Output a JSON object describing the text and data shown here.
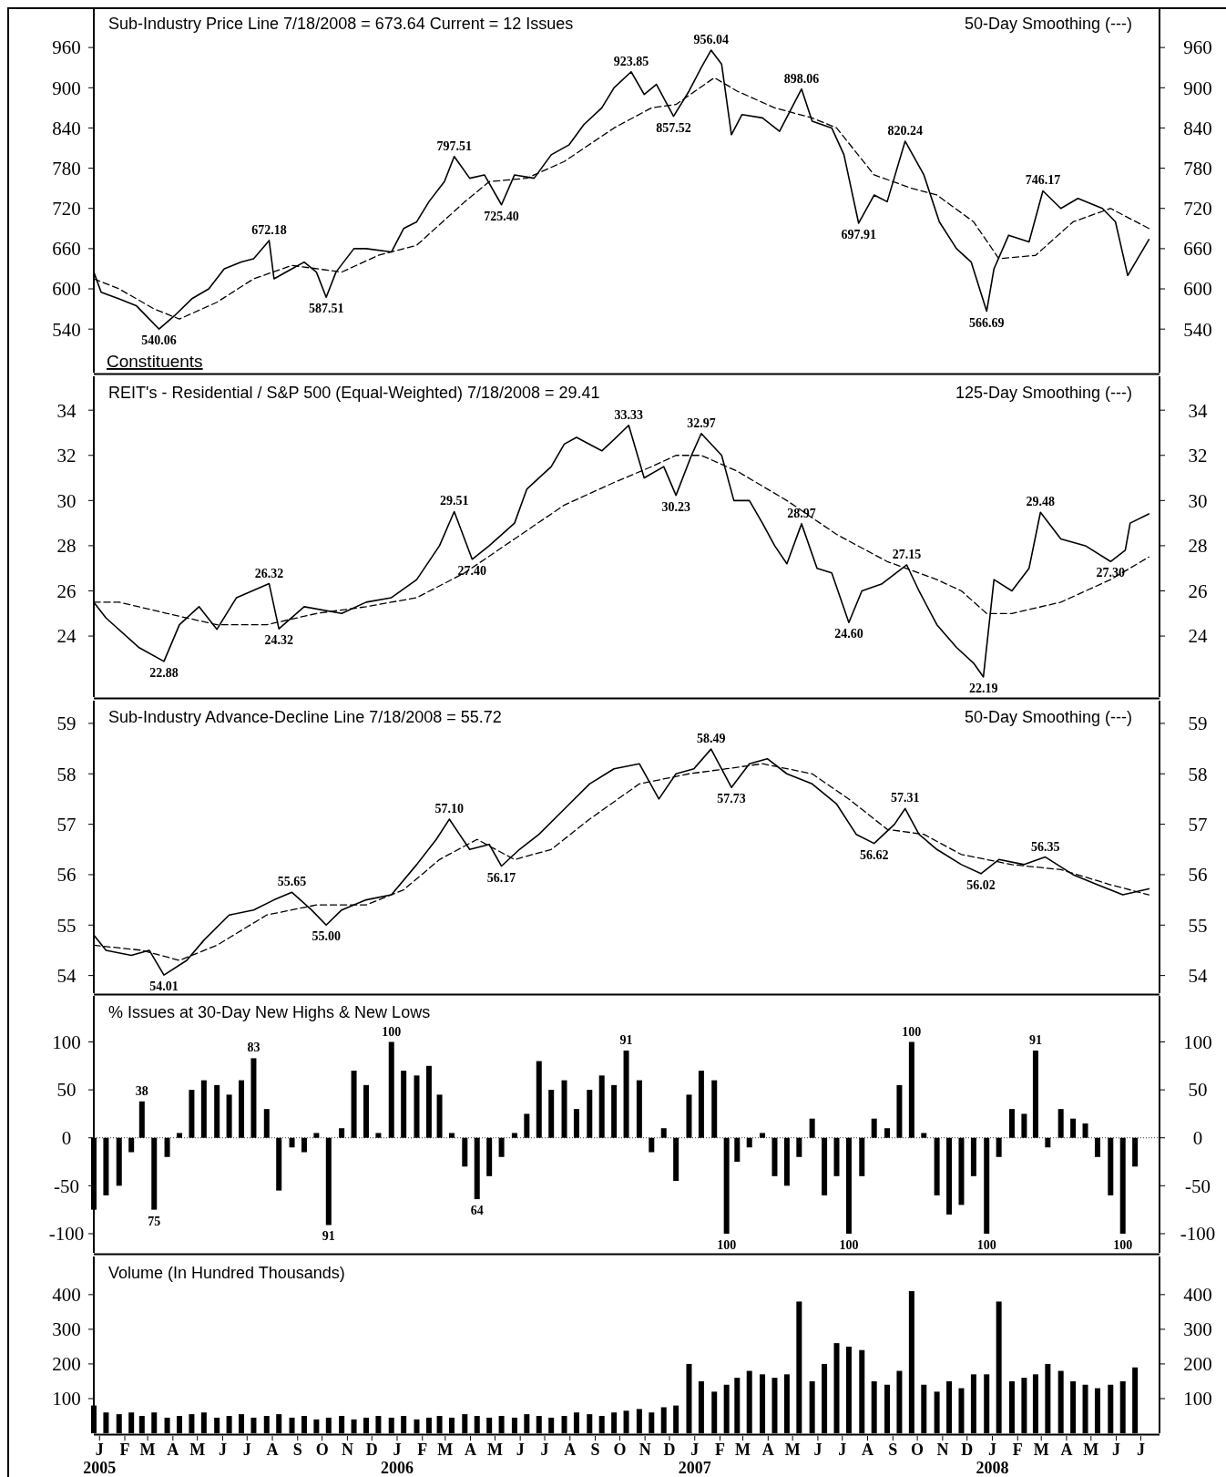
{
  "chart_data": [
    {
      "type": "line",
      "title": "Sub-Industry Price Line 7/18/2008 = 673.64 Current = 12 Issues",
      "subtitle": "50-Day Smoothing (---)",
      "xlim": [
        "2005-01-01",
        "2008-07-31"
      ],
      "ylim": [
        475,
        1020
      ],
      "yticks": [
        540,
        600,
        660,
        720,
        780,
        840,
        900,
        960
      ],
      "y2lim": [
        475,
        1020
      ],
      "y2ticks": [
        540,
        600,
        660,
        720,
        780,
        840,
        900,
        960
      ],
      "tick_labels": "y",
      "series": [
        {
          "color": "#000000",
          "line_style": "solid",
          "x": [
            "2005-01-01",
            "2005-01-10",
            "2005-02-01",
            "2005-02-22",
            "2005-03-10",
            "2005-03-22",
            "2005-04-10",
            "2005-05-01",
            "2005-05-22",
            "2005-06-10",
            "2005-07-01",
            "2005-07-16",
            "2005-08-04",
            "2005-08-10",
            "2005-09-01",
            "2005-09-16",
            "2005-10-01",
            "2005-10-13",
            "2005-10-25",
            "2005-11-16",
            "2005-12-01",
            "2006-01-01",
            "2006-01-16",
            "2006-02-01",
            "2006-02-16",
            "2006-03-07",
            "2006-03-19",
            "2006-04-07",
            "2006-04-25",
            "2006-05-16",
            "2006-06-01",
            "2006-06-25",
            "2006-07-16",
            "2006-08-07",
            "2006-08-25",
            "2006-09-16",
            "2006-10-01",
            "2006-10-22",
            "2006-11-07",
            "2006-11-22",
            "2006-12-13",
            "2007-01-01",
            "2007-01-16",
            "2007-01-28",
            "2007-02-10",
            "2007-02-22",
            "2007-03-07",
            "2007-04-01",
            "2007-04-22",
            "2007-05-19",
            "2007-06-01",
            "2007-06-25",
            "2007-07-10",
            "2007-07-28",
            "2007-08-16",
            "2007-09-01",
            "2007-09-23",
            "2007-10-16",
            "2007-11-04",
            "2007-11-25",
            "2007-12-13",
            "2008-01-01",
            "2008-01-10",
            "2008-01-28",
            "2008-02-22",
            "2008-03-10",
            "2008-04-01",
            "2008-04-22",
            "2008-05-22",
            "2008-06-07",
            "2008-06-22",
            "2008-07-18"
          ],
          "values": [
            625,
            595,
            585,
            575,
            555,
            540.06,
            560,
            585,
            600,
            630,
            640,
            645,
            672.18,
            615,
            630,
            640,
            625,
            587.51,
            625,
            660,
            660,
            655,
            690,
            700,
            730,
            760,
            797.51,
            765,
            770,
            725.4,
            770,
            765,
            800,
            815,
            845,
            870,
            900,
            923.85,
            890,
            905,
            857.52,
            895,
            930,
            956.04,
            935,
            830,
            860,
            855,
            835,
            898.06,
            850,
            840,
            800,
            697.91,
            740,
            730,
            820.24,
            770,
            700,
            660,
            640,
            566.69,
            630,
            680,
            670,
            746.17,
            720,
            735,
            720,
            700,
            620,
            673.64
          ]
        },
        {
          "color": "#000000",
          "line_style": "dashed",
          "x": [
            "2005-01-01",
            "2005-02-01",
            "2005-03-16",
            "2005-04-16",
            "2005-06-01",
            "2005-07-16",
            "2005-09-01",
            "2005-11-01",
            "2005-12-16",
            "2006-02-01",
            "2006-04-01",
            "2006-05-01",
            "2006-06-16",
            "2006-08-01",
            "2006-10-01",
            "2006-11-16",
            "2006-12-16",
            "2007-02-01",
            "2007-03-01",
            "2007-04-16",
            "2007-06-01",
            "2007-07-01",
            "2007-08-16",
            "2007-10-01",
            "2007-11-01",
            "2007-12-16",
            "2008-01-16",
            "2008-03-01",
            "2008-04-16",
            "2008-06-01",
            "2008-07-18"
          ],
          "values": [
            615,
            600,
            570,
            555,
            580,
            615,
            635,
            625,
            650,
            665,
            730,
            760,
            765,
            790,
            840,
            870,
            875,
            915,
            895,
            870,
            855,
            840,
            770,
            750,
            740,
            700,
            645,
            650,
            700,
            720,
            690
          ]
        }
      ],
      "annotations": [
        "Constituents",
        {
          "text": "540.06",
          "x": "2005-03-22",
          "y": 540.06
        },
        {
          "text": "672.18",
          "x": "2005-08-04",
          "y": 672.18
        },
        {
          "text": "587.51",
          "x": "2005-10-13",
          "y": 587.51
        },
        {
          "text": "797.51",
          "x": "2006-03-19",
          "y": 797.51
        },
        {
          "text": "725.40",
          "x": "2006-05-16",
          "y": 725.4
        },
        {
          "text": "923.85",
          "x": "2006-10-22",
          "y": 923.85
        },
        {
          "text": "857.52",
          "x": "2006-12-13",
          "y": 857.52
        },
        {
          "text": "956.04",
          "x": "2007-01-28",
          "y": 956.04
        },
        {
          "text": "898.06",
          "x": "2007-05-19",
          "y": 898.06
        },
        {
          "text": "697.91",
          "x": "2007-07-28",
          "y": 697.91
        },
        {
          "text": "820.24",
          "x": "2007-09-23",
          "y": 820.24
        },
        {
          "text": "566.69",
          "x": "2008-01-01",
          "y": 566.69
        },
        {
          "text": "746.17",
          "x": "2008-03-10",
          "y": 746.17
        }
      ]
    },
    {
      "type": "line",
      "title": "REIT's - Residential / S&P 500 (Equal-Weighted) 7/18/2008 = 29.41",
      "subtitle": "125-Day Smoothing (---)",
      "xlim": [
        "2005-01-01",
        "2008-07-31"
      ],
      "ylim": [
        21.3,
        35.5
      ],
      "yticks": [
        24,
        26,
        28,
        30,
        32,
        34
      ],
      "y2lim": [
        21.3,
        35.5
      ],
      "y2ticks": [
        24,
        26,
        28,
        30,
        32,
        34
      ],
      "tick_labels": "y",
      "series": [
        {
          "color": "#000000",
          "line_style": "solid",
          "x": [
            "2005-01-01",
            "2005-01-16",
            "2005-02-25",
            "2005-03-28",
            "2005-04-16",
            "2005-05-10",
            "2005-06-01",
            "2005-06-25",
            "2005-08-04",
            "2005-08-16",
            "2005-09-16",
            "2005-11-01",
            "2005-12-01",
            "2006-01-01",
            "2006-02-01",
            "2006-03-01",
            "2006-03-19",
            "2006-04-10",
            "2006-05-01",
            "2006-06-01",
            "2006-06-16",
            "2006-07-16",
            "2006-08-01",
            "2006-08-16",
            "2006-09-16",
            "2006-10-01",
            "2006-10-19",
            "2006-11-07",
            "2006-12-01",
            "2006-12-16",
            "2007-01-04",
            "2007-01-16",
            "2007-02-10",
            "2007-02-25",
            "2007-03-16",
            "2007-04-01",
            "2007-04-16",
            "2007-05-01",
            "2007-05-19",
            "2007-06-07",
            "2007-06-25",
            "2007-07-16",
            "2007-08-01",
            "2007-08-25",
            "2007-09-25",
            "2007-10-10",
            "2007-11-01",
            "2007-11-25",
            "2007-12-16",
            "2007-12-28",
            "2008-01-10",
            "2008-02-01",
            "2008-02-22",
            "2008-03-07",
            "2008-04-01",
            "2008-05-01",
            "2008-06-01",
            "2008-06-19",
            "2008-06-25",
            "2008-07-18"
          ],
          "values": [
            25.5,
            24.8,
            23.5,
            22.88,
            24.5,
            25.3,
            24.3,
            25.7,
            26.32,
            24.32,
            25.3,
            25,
            25.5,
            25.7,
            26.5,
            28,
            29.51,
            27.4,
            28,
            29,
            30.5,
            31.5,
            32.5,
            32.8,
            32.2,
            32.7,
            33.33,
            31,
            31.5,
            30.23,
            32,
            32.97,
            32,
            30,
            30,
            29,
            28,
            27.2,
            28.97,
            27,
            26.8,
            24.6,
            26,
            26.3,
            27.15,
            26,
            24.5,
            23.5,
            22.8,
            22.19,
            26.5,
            26,
            27,
            29.48,
            28.3,
            28,
            27.3,
            27.8,
            29,
            29.41
          ]
        },
        {
          "color": "#000000",
          "line_style": "dashed",
          "x": [
            "2005-01-01",
            "2005-02-01",
            "2005-04-01",
            "2005-06-01",
            "2005-08-01",
            "2005-10-01",
            "2005-12-01",
            "2006-02-01",
            "2006-04-01",
            "2006-06-01",
            "2006-08-01",
            "2006-10-01",
            "2006-11-16",
            "2006-12-16",
            "2007-01-16",
            "2007-03-01",
            "2007-05-01",
            "2007-07-01",
            "2007-09-01",
            "2007-11-01",
            "2007-12-01",
            "2008-01-01",
            "2008-02-01",
            "2008-04-01",
            "2008-06-01",
            "2008-07-18"
          ],
          "values": [
            25.5,
            25.5,
            25,
            24.5,
            24.5,
            25,
            25.3,
            25.7,
            26.8,
            28.3,
            29.8,
            30.8,
            31.5,
            32,
            32,
            31.3,
            30,
            28.5,
            27.3,
            26.5,
            26,
            25,
            25,
            25.5,
            26.5,
            27.5
          ]
        }
      ],
      "annotations": [
        {
          "text": "22.88",
          "x": "2005-03-28",
          "y": 22.88
        },
        {
          "text": "26.32",
          "x": "2005-08-04",
          "y": 26.32
        },
        {
          "text": "24.32",
          "x": "2005-08-16",
          "y": 24.32
        },
        {
          "text": "29.51",
          "x": "2006-03-19",
          "y": 29.51
        },
        {
          "text": "27.40",
          "x": "2006-04-10",
          "y": 27.4
        },
        {
          "text": "33.33",
          "x": "2006-10-19",
          "y": 33.33
        },
        {
          "text": "30.23",
          "x": "2006-12-16",
          "y": 30.23
        },
        {
          "text": "32.97",
          "x": "2007-01-16",
          "y": 32.97
        },
        {
          "text": "28.97",
          "x": "2007-05-19",
          "y": 28.97
        },
        {
          "text": "24.60",
          "x": "2007-07-16",
          "y": 24.6
        },
        {
          "text": "27.15",
          "x": "2007-09-25",
          "y": 27.15
        },
        {
          "text": "22.19",
          "x": "2007-12-28",
          "y": 22.19
        },
        {
          "text": "29.48",
          "x": "2008-03-07",
          "y": 29.48
        },
        {
          "text": "27.30",
          "x": "2008-06-01",
          "y": 27.3
        }
      ]
    },
    {
      "type": "line",
      "title": "Sub-Industry Advance-Decline Line 7/18/2008 = 55.72",
      "subtitle": "50-Day Smoothing (---)",
      "xlim": [
        "2005-01-01",
        "2008-07-31"
      ],
      "ylim": [
        53.65,
        59.45
      ],
      "yticks": [
        54,
        55,
        56,
        57,
        58,
        59
      ],
      "y2lim": [
        53.65,
        59.45
      ],
      "y2ticks": [
        54,
        55,
        56,
        57,
        58,
        59
      ],
      "tick_labels": "y",
      "series": [
        {
          "color": "#000000",
          "line_style": "solid",
          "x": [
            "2005-01-01",
            "2005-01-16",
            "2005-02-16",
            "2005-03-10",
            "2005-03-28",
            "2005-04-25",
            "2005-05-16",
            "2005-06-16",
            "2005-07-16",
            "2005-08-10",
            "2005-09-01",
            "2005-09-25",
            "2005-10-13",
            "2005-11-01",
            "2005-12-01",
            "2006-01-01",
            "2006-02-01",
            "2006-02-25",
            "2006-03-13",
            "2006-04-07",
            "2006-05-01",
            "2006-05-16",
            "2006-06-07",
            "2006-07-01",
            "2006-08-01",
            "2006-09-01",
            "2006-10-01",
            "2006-11-01",
            "2006-11-25",
            "2006-12-16",
            "2007-01-07",
            "2007-01-28",
            "2007-02-22",
            "2007-03-16",
            "2007-04-07",
            "2007-05-01",
            "2007-06-01",
            "2007-07-01",
            "2007-07-25",
            "2007-08-16",
            "2007-09-10",
            "2007-09-23",
            "2007-10-10",
            "2007-11-01",
            "2007-12-01",
            "2007-12-25",
            "2008-01-16",
            "2008-02-16",
            "2008-03-13",
            "2008-04-16",
            "2008-05-16",
            "2008-06-16",
            "2008-07-18"
          ],
          "values": [
            54.8,
            54.5,
            54.4,
            54.5,
            54.01,
            54.3,
            54.7,
            55.2,
            55.3,
            55.5,
            55.65,
            55.3,
            55,
            55.3,
            55.5,
            55.6,
            56.2,
            56.7,
            57.1,
            56.5,
            56.6,
            56.17,
            56.5,
            56.8,
            57.3,
            57.8,
            58.1,
            58.2,
            57.5,
            58,
            58.1,
            58.49,
            57.73,
            58.2,
            58.3,
            58,
            57.8,
            57.4,
            56.8,
            56.62,
            57,
            57.31,
            56.8,
            56.5,
            56.2,
            56.02,
            56.3,
            56.2,
            56.35,
            56,
            55.8,
            55.6,
            55.72
          ]
        },
        {
          "color": "#000000",
          "line_style": "dashed",
          "x": [
            "2005-01-01",
            "2005-03-01",
            "2005-04-16",
            "2005-06-01",
            "2005-08-01",
            "2005-10-01",
            "2005-12-01",
            "2006-01-16",
            "2006-03-01",
            "2006-04-16",
            "2006-06-01",
            "2006-07-16",
            "2006-09-01",
            "2006-11-01",
            "2007-01-01",
            "2007-02-16",
            "2007-04-01",
            "2007-06-01",
            "2007-07-16",
            "2007-09-01",
            "2007-10-16",
            "2007-12-01",
            "2008-02-01",
            "2008-04-01",
            "2008-06-01",
            "2008-07-18"
          ],
          "values": [
            54.6,
            54.5,
            54.3,
            54.6,
            55.2,
            55.4,
            55.4,
            55.7,
            56.3,
            56.7,
            56.3,
            56.5,
            57.1,
            57.8,
            58,
            58.1,
            58.2,
            58,
            57.5,
            56.9,
            56.8,
            56.4,
            56.2,
            56.1,
            55.8,
            55.6
          ]
        }
      ],
      "annotations": [
        {
          "text": "54.01",
          "x": "2005-03-28",
          "y": 54.01
        },
        {
          "text": "55.65",
          "x": "2005-09-01",
          "y": 55.65
        },
        {
          "text": "55.00",
          "x": "2005-10-13",
          "y": 55
        },
        {
          "text": "57.10",
          "x": "2006-03-13",
          "y": 57.1
        },
        {
          "text": "56.17",
          "x": "2006-05-16",
          "y": 56.17
        },
        {
          "text": "58.49",
          "x": "2007-01-28",
          "y": 58.49
        },
        {
          "text": "57.73",
          "x": "2007-02-22",
          "y": 57.73
        },
        {
          "text": "56.62",
          "x": "2007-08-16",
          "y": 56.62
        },
        {
          "text": "57.31",
          "x": "2007-09-23",
          "y": 57.31
        },
        {
          "text": "56.02",
          "x": "2007-12-25",
          "y": 56.02
        },
        {
          "text": "56.35",
          "x": "2008-03-13",
          "y": 56.35
        }
      ]
    },
    {
      "type": "bar",
      "title": "% Issues at 30-Day New Highs & New Lows",
      "xlim": [
        "2005-01-01",
        "2008-07-31"
      ],
      "ylim": [
        -120,
        148
      ],
      "yticks": [
        -100,
        -50,
        0,
        50,
        100
      ],
      "y2lim": [
        -120,
        148
      ],
      "y2ticks": [
        -100,
        -50,
        0,
        50,
        100
      ],
      "tick_labels": "y",
      "x": [
        "2005-01-01",
        "2005-01-16",
        "2005-02-01",
        "2005-02-16",
        "2005-03-01",
        "2005-03-16",
        "2005-04-01",
        "2005-04-16",
        "2005-05-01",
        "2005-05-16",
        "2005-06-01",
        "2005-06-16",
        "2005-07-01",
        "2005-07-16",
        "2005-08-01",
        "2005-08-16",
        "2005-09-01",
        "2005-09-16",
        "2005-10-01",
        "2005-10-16",
        "2005-11-01",
        "2005-11-16",
        "2005-12-01",
        "2005-12-16",
        "2006-01-01",
        "2006-01-16",
        "2006-02-01",
        "2006-02-16",
        "2006-03-01",
        "2006-03-16",
        "2006-04-01",
        "2006-04-16",
        "2006-05-01",
        "2006-05-16",
        "2006-06-01",
        "2006-06-16",
        "2006-07-01",
        "2006-07-16",
        "2006-08-01",
        "2006-08-16",
        "2006-09-01",
        "2006-09-16",
        "2006-10-01",
        "2006-10-16",
        "2006-11-01",
        "2006-11-16",
        "2006-12-01",
        "2006-12-16",
        "2007-01-01",
        "2007-01-16",
        "2007-02-01",
        "2007-02-16",
        "2007-03-01",
        "2007-03-16",
        "2007-04-01",
        "2007-04-16",
        "2007-05-01",
        "2007-05-16",
        "2007-06-01",
        "2007-06-16",
        "2007-07-01",
        "2007-07-16",
        "2007-08-01",
        "2007-08-16",
        "2007-09-01",
        "2007-09-16",
        "2007-10-01",
        "2007-10-16",
        "2007-11-01",
        "2007-11-16",
        "2007-12-01",
        "2007-12-16",
        "2008-01-01",
        "2008-01-16",
        "2008-02-01",
        "2008-02-16",
        "2008-03-01",
        "2008-03-16",
        "2008-04-01",
        "2008-04-16",
        "2008-05-01",
        "2008-05-16",
        "2008-06-01",
        "2008-06-16",
        "2008-07-01"
      ],
      "series": [
        {
          "color": "#000000",
          "values": [
            -75,
            -60,
            -50,
            -15,
            38,
            -75,
            -20,
            5,
            50,
            60,
            55,
            45,
            60,
            83,
            30,
            -55,
            -10,
            -15,
            5,
            -91,
            10,
            70,
            55,
            5,
            100,
            70,
            65,
            75,
            45,
            5,
            -30,
            -64,
            -40,
            -20,
            5,
            25,
            80,
            50,
            60,
            30,
            50,
            65,
            55,
            91,
            60,
            -15,
            10,
            -45,
            45,
            70,
            60,
            -100,
            -25,
            -10,
            5,
            -40,
            -50,
            -20,
            20,
            -60,
            -40,
            -100,
            -40,
            20,
            10,
            55,
            100,
            5,
            -60,
            -80,
            -70,
            -40,
            -100,
            -20,
            30,
            25,
            91,
            -10,
            30,
            20,
            15,
            -20,
            -60,
            -100,
            -30
          ]
        }
      ],
      "annotations": [
        {
          "text": "38",
          "x": "2005-03-01",
          "y": 38
        },
        {
          "text": "75",
          "x": "2005-03-16",
          "y": -75
        },
        {
          "text": "83",
          "x": "2005-07-16",
          "y": 83
        },
        {
          "text": "91",
          "x": "2005-10-16",
          "y": -91
        },
        {
          "text": "100",
          "x": "2006-01-01",
          "y": 100
        },
        {
          "text": "64",
          "x": "2006-04-16",
          "y": -64
        },
        {
          "text": "91",
          "x": "2006-10-16",
          "y": 91
        },
        {
          "text": "100",
          "x": "2007-02-16",
          "y": -100
        },
        {
          "text": "100",
          "x": "2007-07-16",
          "y": -100
        },
        {
          "text": "100",
          "x": "2007-10-01",
          "y": 100
        },
        {
          "text": "100",
          "x": "2008-01-01",
          "y": -100
        },
        {
          "text": "91",
          "x": "2008-03-01",
          "y": 91
        },
        {
          "text": "100",
          "x": "2008-06-16",
          "y": -100
        }
      ]
    },
    {
      "type": "bar",
      "title": "Volume (In Hundred Thousands)",
      "xlim": [
        "2005-01-01",
        "2008-07-31"
      ],
      "ylim": [
        0,
        510
      ],
      "yticks": [
        100,
        200,
        300,
        400
      ],
      "y2lim": [
        0,
        510
      ],
      "y2ticks": [
        100,
        200,
        300,
        400
      ],
      "xticks": [
        {
          "value": "2005-01-08",
          "label": "J\n2005"
        },
        {
          "value": "2005-02-08",
          "label": "F"
        },
        {
          "value": "2005-03-08",
          "label": "M"
        },
        {
          "value": "2005-04-08",
          "label": "A"
        },
        {
          "value": "2005-05-08",
          "label": "M"
        },
        {
          "value": "2005-06-08",
          "label": "J"
        },
        {
          "value": "2005-07-08",
          "label": "J"
        },
        {
          "value": "2005-08-08",
          "label": "A"
        },
        {
          "value": "2005-09-08",
          "label": "S"
        },
        {
          "value": "2005-10-08",
          "label": "O"
        },
        {
          "value": "2005-11-08",
          "label": "N"
        },
        {
          "value": "2005-12-08",
          "label": "D"
        },
        {
          "value": "2006-01-08",
          "label": "J\n2006"
        },
        {
          "value": "2006-02-08",
          "label": "F"
        },
        {
          "value": "2006-03-08",
          "label": "M"
        },
        {
          "value": "2006-04-08",
          "label": "A"
        },
        {
          "value": "2006-05-08",
          "label": "M"
        },
        {
          "value": "2006-06-08",
          "label": "J"
        },
        {
          "value": "2006-07-08",
          "label": "J"
        },
        {
          "value": "2006-08-08",
          "label": "A"
        },
        {
          "value": "2006-09-08",
          "label": "S"
        },
        {
          "value": "2006-10-08",
          "label": "O"
        },
        {
          "value": "2006-11-08",
          "label": "N"
        },
        {
          "value": "2006-12-08",
          "label": "D"
        },
        {
          "value": "2007-01-08",
          "label": "J\n2007"
        },
        {
          "value": "2007-02-08",
          "label": "F"
        },
        {
          "value": "2007-03-08",
          "label": "M"
        },
        {
          "value": "2007-04-08",
          "label": "A"
        },
        {
          "value": "2007-05-08",
          "label": "M"
        },
        {
          "value": "2007-06-08",
          "label": "J"
        },
        {
          "value": "2007-07-08",
          "label": "J"
        },
        {
          "value": "2007-08-08",
          "label": "A"
        },
        {
          "value": "2007-09-08",
          "label": "S"
        },
        {
          "value": "2007-10-08",
          "label": "O"
        },
        {
          "value": "2007-11-08",
          "label": "N"
        },
        {
          "value": "2007-12-08",
          "label": "D"
        },
        {
          "value": "2008-01-08",
          "label": "J\n2008"
        },
        {
          "value": "2008-02-08",
          "label": "F"
        },
        {
          "value": "2008-03-08",
          "label": "M"
        },
        {
          "value": "2008-04-08",
          "label": "A"
        },
        {
          "value": "2008-05-08",
          "label": "M"
        },
        {
          "value": "2008-06-08",
          "label": "J"
        },
        {
          "value": "2008-07-08",
          "label": "J"
        }
      ],
      "x": [
        "2005-01-01",
        "2005-01-16",
        "2005-02-01",
        "2005-02-16",
        "2005-03-01",
        "2005-03-16",
        "2005-04-01",
        "2005-04-16",
        "2005-05-01",
        "2005-05-16",
        "2005-06-01",
        "2005-06-16",
        "2005-07-01",
        "2005-07-16",
        "2005-08-01",
        "2005-08-16",
        "2005-09-01",
        "2005-09-16",
        "2005-10-01",
        "2005-10-16",
        "2005-11-01",
        "2005-11-16",
        "2005-12-01",
        "2005-12-16",
        "2006-01-01",
        "2006-01-16",
        "2006-02-01",
        "2006-02-16",
        "2006-03-01",
        "2006-03-16",
        "2006-04-01",
        "2006-04-16",
        "2006-05-01",
        "2006-05-16",
        "2006-06-01",
        "2006-06-16",
        "2006-07-01",
        "2006-07-16",
        "2006-08-01",
        "2006-08-16",
        "2006-09-01",
        "2006-09-16",
        "2006-10-01",
        "2006-10-16",
        "2006-11-01",
        "2006-11-16",
        "2006-12-01",
        "2006-12-16",
        "2007-01-01",
        "2007-01-16",
        "2007-02-01",
        "2007-02-16",
        "2007-03-01",
        "2007-03-16",
        "2007-04-01",
        "2007-04-16",
        "2007-05-01",
        "2007-05-16",
        "2007-06-01",
        "2007-06-16",
        "2007-07-01",
        "2007-07-16",
        "2007-08-01",
        "2007-08-16",
        "2007-09-01",
        "2007-09-16",
        "2007-10-01",
        "2007-10-16",
        "2007-11-01",
        "2007-11-16",
        "2007-12-01",
        "2007-12-16",
        "2008-01-01",
        "2008-01-16",
        "2008-02-01",
        "2008-02-16",
        "2008-03-01",
        "2008-03-16",
        "2008-04-01",
        "2008-04-16",
        "2008-05-01",
        "2008-05-16",
        "2008-06-01",
        "2008-06-16",
        "2008-07-01"
      ],
      "series": [
        {
          "color": "#000000",
          "values": [
            80,
            60,
            55,
            60,
            50,
            60,
            45,
            50,
            55,
            60,
            45,
            50,
            55,
            45,
            50,
            55,
            45,
            50,
            40,
            45,
            50,
            40,
            45,
            50,
            45,
            50,
            40,
            45,
            50,
            45,
            55,
            50,
            45,
            50,
            45,
            55,
            50,
            45,
            50,
            60,
            55,
            50,
            60,
            65,
            70,
            60,
            75,
            80,
            200,
            150,
            120,
            140,
            160,
            180,
            170,
            160,
            170,
            380,
            150,
            200,
            260,
            250,
            240,
            150,
            140,
            180,
            410,
            140,
            120,
            150,
            130,
            170,
            170,
            380,
            150,
            160,
            170,
            200,
            180,
            150,
            140,
            130,
            140,
            150,
            190
          ]
        }
      ]
    }
  ]
}
